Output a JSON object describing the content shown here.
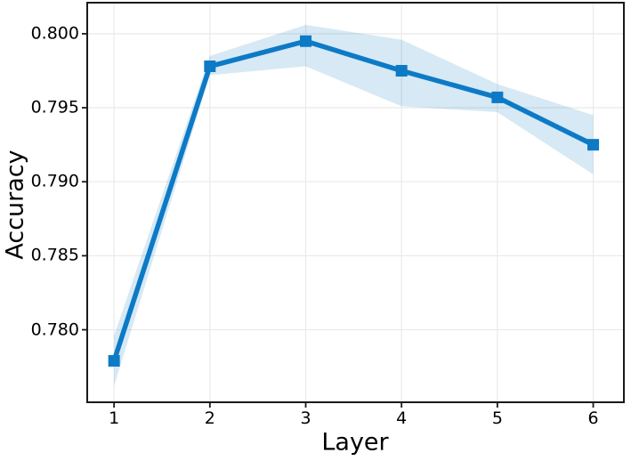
{
  "chart_data": {
    "type": "line",
    "title": "",
    "xlabel": "Layer",
    "ylabel": "Accuracy",
    "x": [
      1,
      2,
      3,
      4,
      5,
      6
    ],
    "series": [
      {
        "name": "accuracy",
        "values": [
          0.7779,
          0.7978,
          0.7995,
          0.7975,
          0.7957,
          0.7925
        ],
        "band_upper": [
          0.7796,
          0.7985,
          0.8006,
          0.7996,
          0.7966,
          0.7945
        ],
        "band_lower": [
          0.7762,
          0.7972,
          0.7978,
          0.7951,
          0.7947,
          0.7905
        ]
      }
    ],
    "xtick_labels": [
      "1",
      "2",
      "3",
      "4",
      "5",
      "6"
    ],
    "xtick_values": [
      1,
      2,
      3,
      4,
      5,
      6
    ],
    "ytick_labels": [
      "0.780",
      "0.785",
      "0.790",
      "0.795",
      "0.800"
    ],
    "ytick_values": [
      0.78,
      0.785,
      0.79,
      0.795,
      0.8
    ],
    "xlim": [
      0.72,
      6.32
    ],
    "ylim": [
      0.7751,
      0.8021
    ],
    "grid": true,
    "legend_position": "none",
    "line_color": "#0d7ac6",
    "band_color": "rgba(13,122,198,0.17)",
    "marker": "square"
  },
  "style": {
    "background": "#ffffff",
    "grid_color": "#ebebeb",
    "spine_color": "#1a1a1a",
    "text_color": "#000000"
  }
}
